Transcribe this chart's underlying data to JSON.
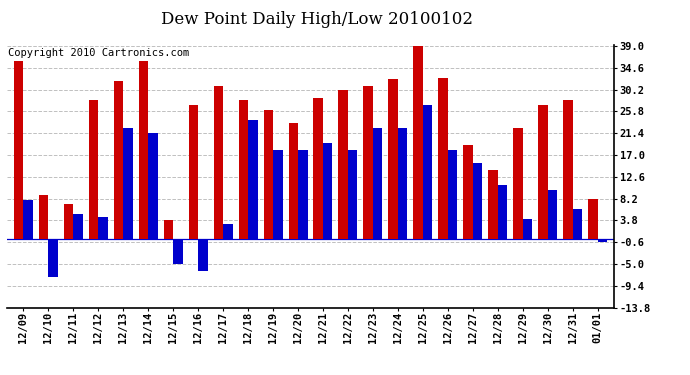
{
  "title": "Dew Point Daily High/Low 20100102",
  "copyright": "Copyright 2010 Cartronics.com",
  "dates": [
    "12/09",
    "12/10",
    "12/11",
    "12/12",
    "12/13",
    "12/14",
    "12/15",
    "12/16",
    "12/17",
    "12/18",
    "12/19",
    "12/20",
    "12/21",
    "12/22",
    "12/23",
    "12/24",
    "12/25",
    "12/26",
    "12/27",
    "12/28",
    "12/29",
    "12/30",
    "12/31",
    "01/01"
  ],
  "highs": [
    36.0,
    9.0,
    7.0,
    28.0,
    32.0,
    36.0,
    3.8,
    27.0,
    31.0,
    28.0,
    26.0,
    23.4,
    28.4,
    30.2,
    31.0,
    32.4,
    39.0,
    32.6,
    19.0,
    14.0,
    22.4,
    27.0,
    28.0,
    8.2
  ],
  "lows": [
    8.0,
    -7.6,
    5.0,
    4.4,
    22.4,
    21.4,
    -5.0,
    -6.5,
    3.0,
    24.0,
    18.0,
    18.0,
    19.4,
    18.0,
    22.4,
    22.4,
    27.0,
    18.0,
    15.4,
    11.0,
    4.0,
    10.0,
    6.0,
    -0.6
  ],
  "high_color": "#cc0000",
  "low_color": "#0000cc",
  "bar_width": 0.38,
  "ylim": [
    -13.8,
    39.2
  ],
  "yticks": [
    39.0,
    34.6,
    30.2,
    25.8,
    21.4,
    17.0,
    12.6,
    8.2,
    3.8,
    -0.6,
    -5.0,
    -9.4,
    -13.8
  ],
  "grid_color": "#c0c0c0",
  "bg_color": "#ffffff",
  "fig_bg_color": "#ffffff",
  "title_fontsize": 12,
  "tick_fontsize": 7.5,
  "copyright_fontsize": 7.5
}
